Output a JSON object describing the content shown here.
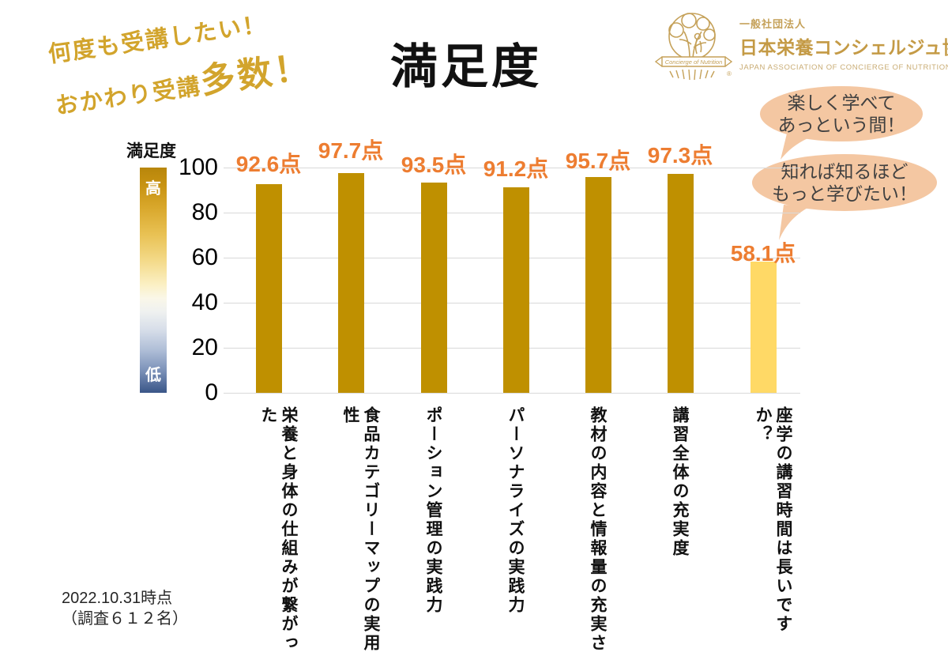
{
  "promo": {
    "line1": "何度も受講したい！",
    "line2_prefix": "おかわり受講",
    "line2_emphasis": "多数",
    "line2_suffix": "！"
  },
  "title": "満足度",
  "logo": {
    "org_type": "一般社団法人",
    "org_name": "日本栄養コンシェルジュ協会",
    "org_name_en": "JAPAN ASSOCIATION OF CONCIERGE OF NUTRITION",
    "banner": "Concierge of Nutrition",
    "registered_mark": "®"
  },
  "bubbles": [
    {
      "lines": [
        "楽しく学べて",
        "あっという間！"
      ]
    },
    {
      "lines": [
        "知れば知るほど",
        "もっと学びたい！"
      ]
    }
  ],
  "legend": {
    "title": "満足度",
    "high": "高",
    "low": "低"
  },
  "footnote": {
    "line1": "2022.10.31時点",
    "line2": "（調査６１２名）"
  },
  "chart_data": {
    "type": "bar",
    "title": "満足度",
    "categories": [
      "栄養と身体の仕組みが繋がった",
      "食品カテゴリーマップの実用性",
      "ポーション管理の実践力",
      "パーソナライズの実践力",
      "教材の内容と情報量の充実さ",
      "講習全体の充実度",
      "座学の講習時間は長いですか？"
    ],
    "values": [
      92.6,
      97.7,
      93.5,
      91.2,
      95.7,
      97.3,
      58.1
    ],
    "value_labels": [
      "92.6点",
      "97.7点",
      "93.5点",
      "91.2点",
      "95.7点",
      "97.3点",
      "58.1点"
    ],
    "bar_colors": [
      "#BF9000",
      "#BF9000",
      "#BF9000",
      "#BF9000",
      "#BF9000",
      "#BF9000",
      "#FFD966"
    ],
    "yticks": [
      0,
      20,
      40,
      60,
      80,
      100
    ],
    "ylim": [
      0,
      100
    ],
    "grid": true,
    "gridline_color": "#D9D9D9",
    "value_label_color": "#ED7D31",
    "legend_gradient": [
      "#B8860B",
      "#FFD966",
      "#FFFFFF",
      "#3A5688"
    ]
  },
  "colors": {
    "promo_gold": "#D2A42C",
    "bubble_fill": "#F4C7A2",
    "logo_gold": "#C49A45"
  }
}
